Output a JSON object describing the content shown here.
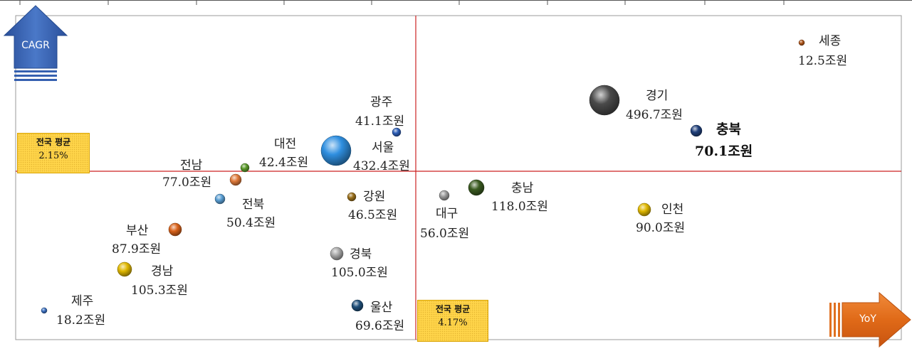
{
  "chart_data": {
    "type": "scatter",
    "title": "",
    "xlabel": "YoY",
    "ylabel": "CAGR",
    "grid": false,
    "legend": "none",
    "reference_lines": [
      {
        "axis": "x",
        "title": "전국 평균",
        "value_label": "4.17%"
      },
      {
        "axis": "y",
        "title": "전국 평균",
        "value_label": "2.15%"
      }
    ],
    "points": [
      {
        "name": "세종",
        "size_label": "12.5조원",
        "size": 12.5,
        "color": "#b0561a"
      },
      {
        "name": "경기",
        "size_label": "496.7조원",
        "size": 496.7,
        "color": "#4a4a4a"
      },
      {
        "name": "충북",
        "size_label": "70.1조원",
        "size": 70.1,
        "color": "#1f3f7a",
        "highlight": true
      },
      {
        "name": "광주",
        "size_label": "41.1조원",
        "size": 41.1,
        "color": "#2e5fb8"
      },
      {
        "name": "서울",
        "size_label": "432.4조원",
        "size": 432.4,
        "color": "#2f8fe0"
      },
      {
        "name": "대전",
        "size_label": "42.4조원",
        "size": 42.4,
        "color": "#5a9a2a"
      },
      {
        "name": "전남",
        "size_label": "77.0조원",
        "size": 77.0,
        "color": "#e07a3a"
      },
      {
        "name": "전북",
        "size_label": "50.4조원",
        "size": 50.4,
        "color": "#5a9fd4"
      },
      {
        "name": "강원",
        "size_label": "46.5조원",
        "size": 46.5,
        "color": "#9a6f1a"
      },
      {
        "name": "대구",
        "size_label": "56.0조원",
        "size": 56.0,
        "color": "#9a9a9a"
      },
      {
        "name": "충남",
        "size_label": "118.0조원",
        "size": 118.0,
        "color": "#3a5a20"
      },
      {
        "name": "인천",
        "size_label": "90.0조원",
        "size": 90.0,
        "color": "#e0b800"
      },
      {
        "name": "부산",
        "size_label": "87.9조원",
        "size": 87.9,
        "color": "#d9621a"
      },
      {
        "name": "경남",
        "size_label": "105.3조원",
        "size": 105.3,
        "color": "#e0b800"
      },
      {
        "name": "경북",
        "size_label": "105.0조원",
        "size": 105.0,
        "color": "#a8a8a8"
      },
      {
        "name": "제주",
        "size_label": "18.2조원",
        "size": 18.2,
        "color": "#3a6fc0"
      },
      {
        "name": "울산",
        "size_label": "69.6조원",
        "size": 69.6,
        "color": "#1f4f7a"
      }
    ]
  },
  "colors": {
    "divider": "#cc2222",
    "cagr_arrow": "#3560b0",
    "yoy_arrow": "#e07020",
    "avg_box": "#ffd54a"
  }
}
